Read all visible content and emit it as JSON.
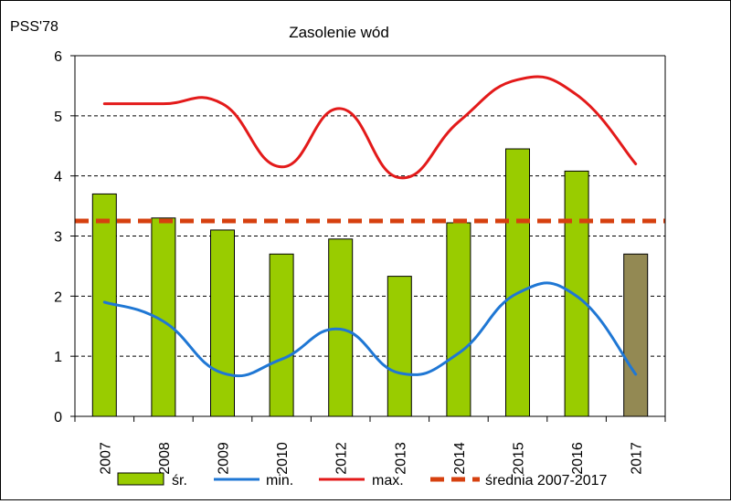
{
  "chart_data": {
    "type": "bar",
    "title": "Zasolenie wód",
    "ylabel": "PSS'78",
    "xlabel": "",
    "ylim": [
      0,
      6
    ],
    "yticks": [
      0,
      1,
      2,
      3,
      4,
      5,
      6
    ],
    "grid": true,
    "legend_position": "bottom",
    "categories": [
      "2007",
      "2008",
      "2009",
      "2010",
      "2012",
      "2013",
      "2014",
      "2015",
      "2016",
      "2017"
    ],
    "series": [
      {
        "name": "śr.",
        "type": "bar",
        "values": [
          3.7,
          3.3,
          3.1,
          2.7,
          2.95,
          2.33,
          3.22,
          4.45,
          4.08,
          2.7
        ],
        "color": "#99cc00",
        "highlight_last_color": "#938953"
      },
      {
        "name": "min.",
        "type": "line",
        "values": [
          1.9,
          1.58,
          0.72,
          0.95,
          1.45,
          0.72,
          1.05,
          2.05,
          2.0,
          0.7
        ],
        "color": "#1f77d4"
      },
      {
        "name": "max.",
        "type": "line",
        "values": [
          5.2,
          5.2,
          5.2,
          4.15,
          5.12,
          3.97,
          4.9,
          5.6,
          5.35,
          4.2
        ],
        "color": "#e31a1a"
      },
      {
        "name": "średnia 2007-2017",
        "type": "hline",
        "value": 3.25,
        "color": "#d6400f"
      }
    ]
  }
}
